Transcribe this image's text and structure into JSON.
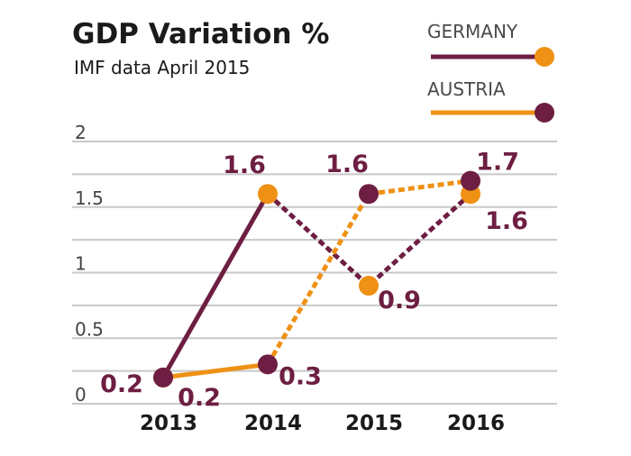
{
  "colors": {
    "germany": "#6e1e42",
    "austria": "#ee9114",
    "grid": "#c8c8c8",
    "text": "#1a1a1a"
  },
  "chart_data": {
    "type": "line",
    "title": "GDP Variation %",
    "subtitle": "IMF data April 2015",
    "categories": [
      "2013",
      "2014",
      "2015",
      "2016"
    ],
    "y_ticks": [
      "0",
      "0.5",
      "1",
      "1.5",
      "2"
    ],
    "ylim": [
      0,
      2
    ],
    "grid": true,
    "legend_position": "top-right",
    "series": [
      {
        "name": "GERMANY",
        "values": [
          0.2,
          1.6,
          0.9,
          1.6
        ],
        "labels": [
          "0.2",
          "1.6",
          "0.9",
          "1.6"
        ],
        "color": "#6e1e42",
        "marker_color": "#ee9114",
        "dashed_from_index": 2
      },
      {
        "name": "AUSTRIA",
        "values": [
          0.2,
          0.3,
          1.6,
          1.7
        ],
        "labels": [
          "0.2",
          "0.3",
          "1.6",
          "1.7"
        ],
        "color": "#ee9114",
        "marker_color": "#6e1e42",
        "dashed_from_index": 2
      }
    ]
  }
}
